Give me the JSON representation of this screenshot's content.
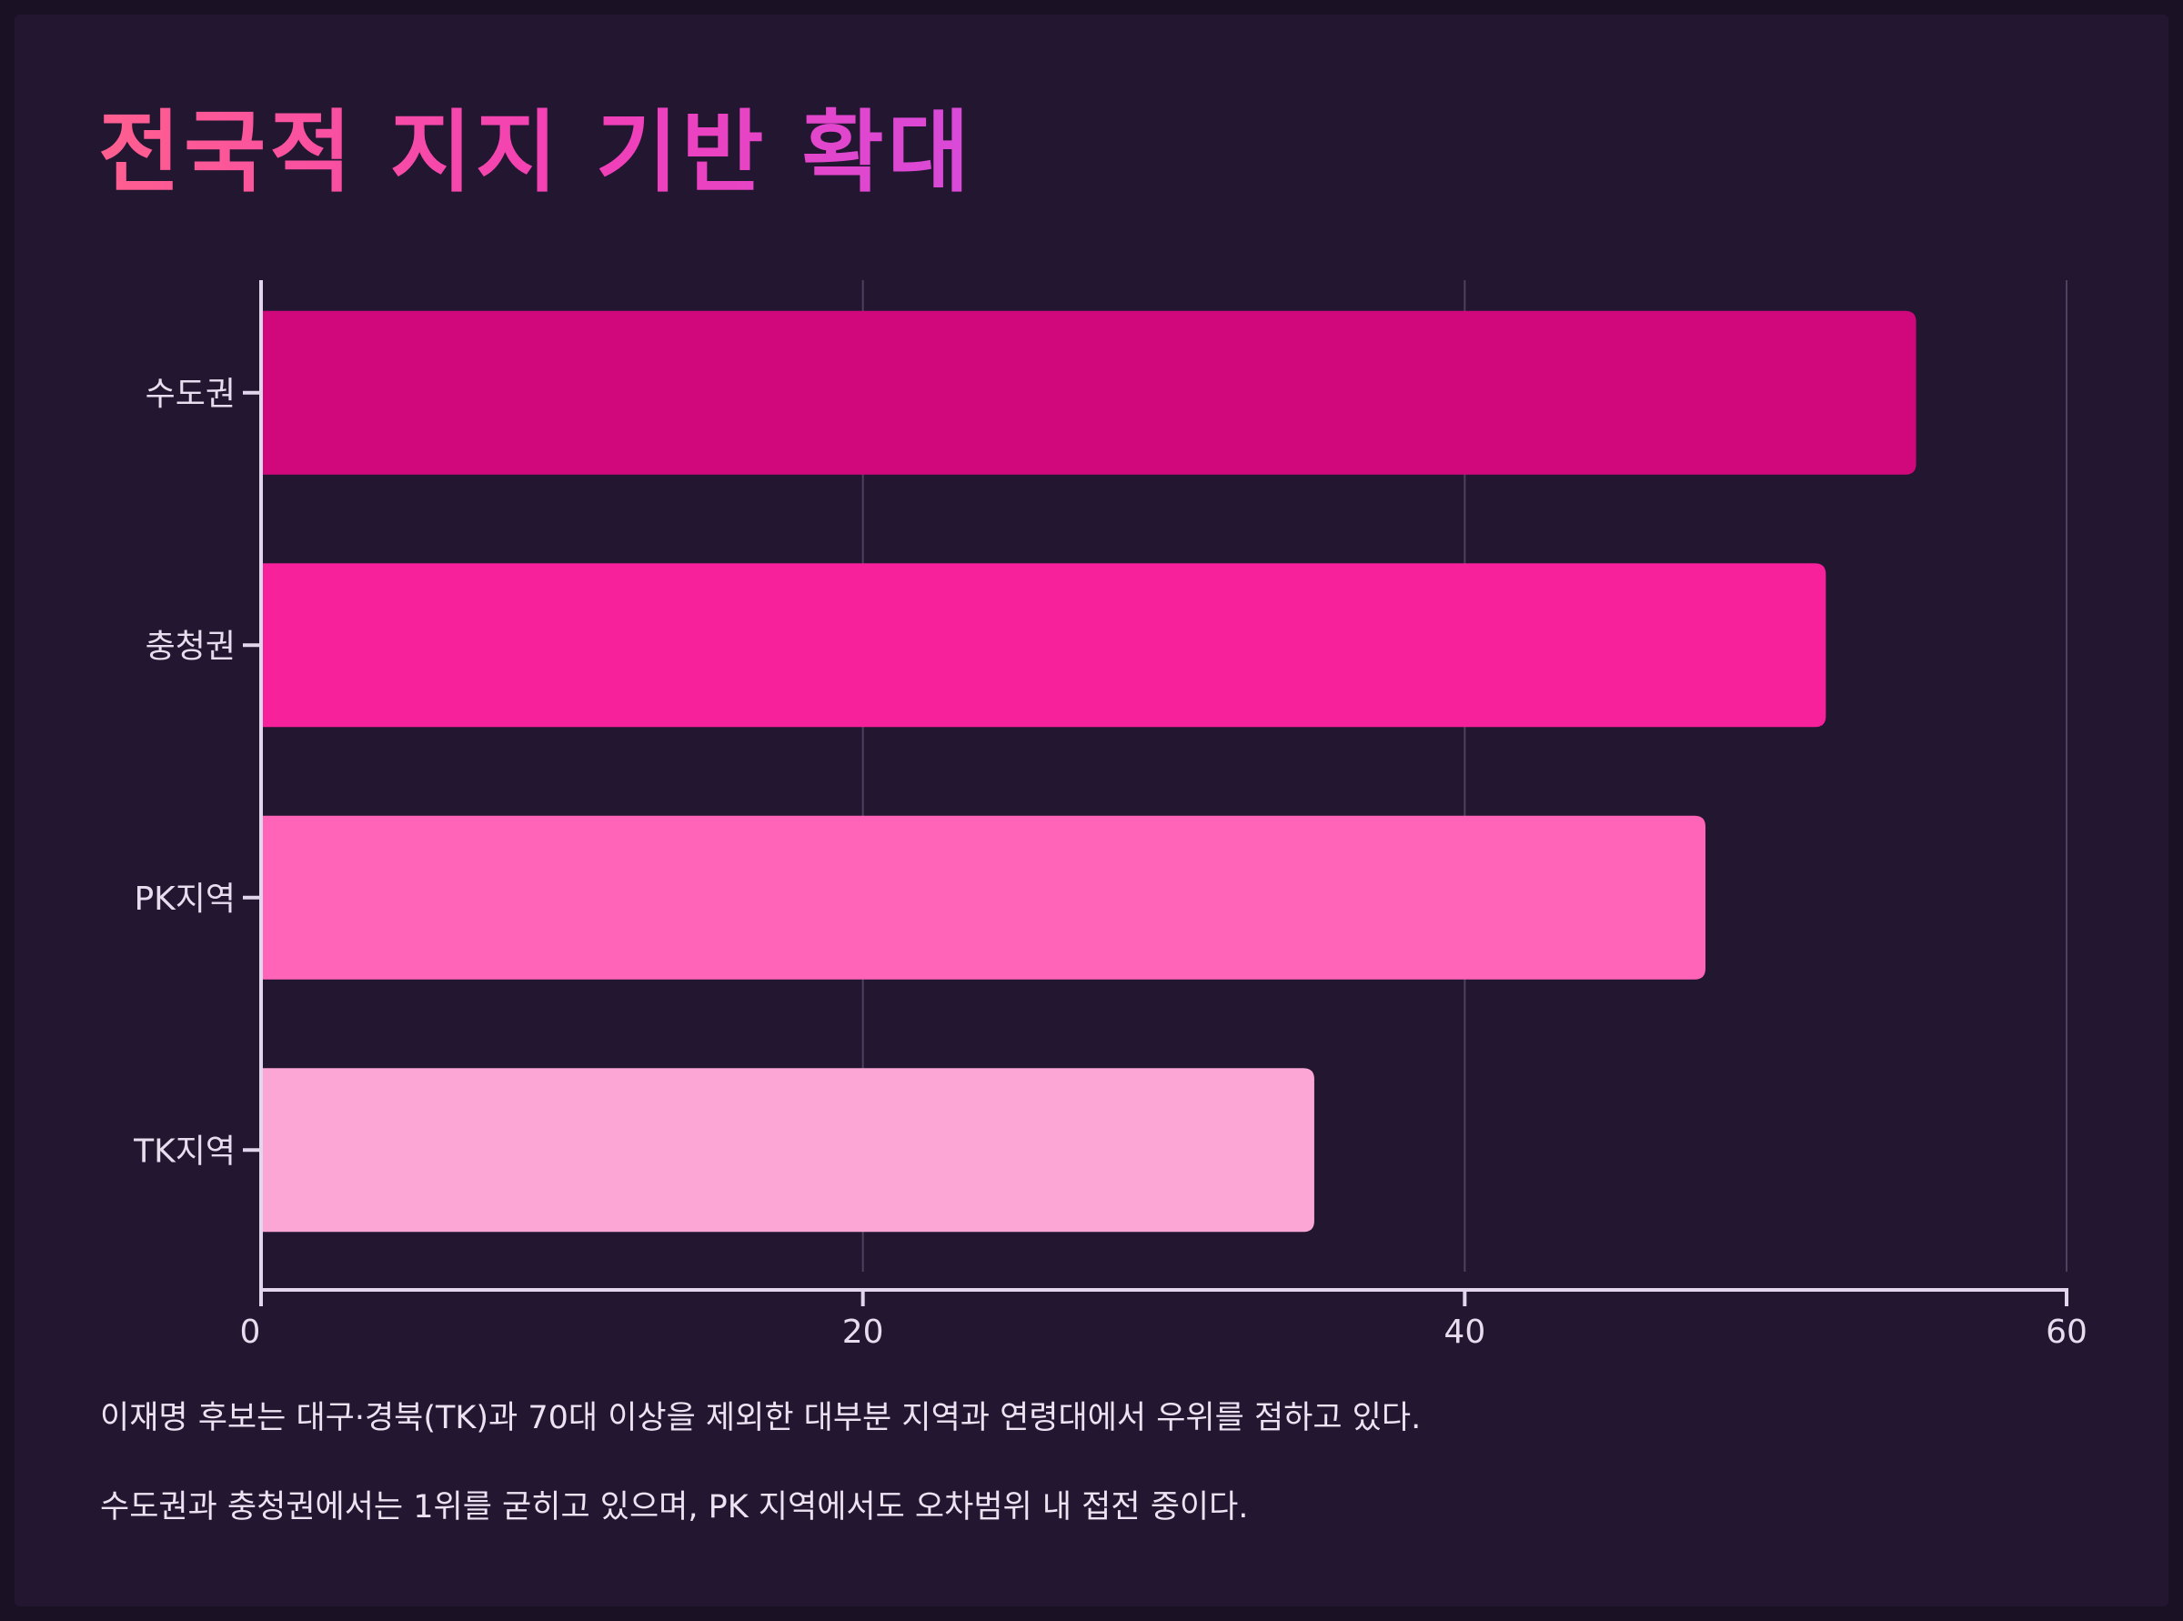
{
  "title": "전국적 지지 기반 확대",
  "captions": [
    "이재명 후보는 대구·경북(TK)과 70대 이상을 제외한 대부분 지역과 연령대에서 우위를 점하고 있다.",
    "수도권과 충청권에서는 1위를 굳히고 있으며, PK 지역에서도 오차범위 내 접전 중이다."
  ],
  "colors": {
    "background": "#221631",
    "axis": "#e3d6ec",
    "grid": "#4e4060",
    "bars": [
      "#d1087c",
      "#f7219b",
      "#ff64b8",
      "#fca6d6"
    ]
  },
  "chart_data": {
    "type": "bar",
    "orientation": "horizontal",
    "title": "",
    "xlabel": "",
    "ylabel": "",
    "categories": [
      "수도권",
      "충청권",
      "PK지역",
      "TK지역"
    ],
    "values": [
      55,
      52,
      48,
      35
    ],
    "xlim": [
      0,
      60
    ],
    "xticks": [
      0,
      20,
      40,
      60
    ],
    "grid": "vertical",
    "legend": "none"
  }
}
